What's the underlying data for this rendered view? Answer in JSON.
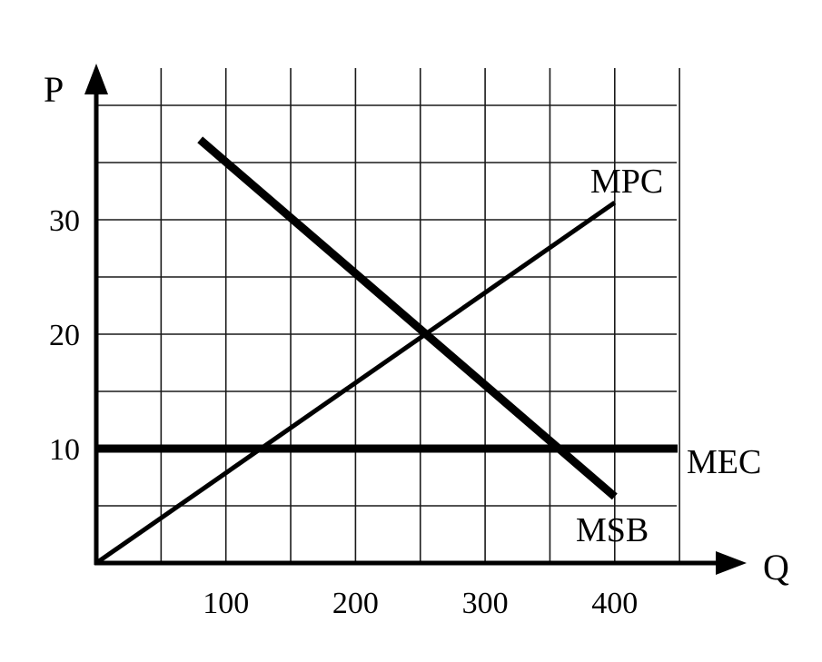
{
  "chart_data": {
    "type": "line",
    "xlabel": "Q",
    "ylabel": "P",
    "xlim": [
      0,
      450
    ],
    "ylim": [
      0,
      40
    ],
    "grid": true,
    "x_ticks": [
      100,
      200,
      300,
      400
    ],
    "y_ticks": [
      10,
      20,
      30
    ],
    "series": [
      {
        "name": "MPC",
        "points": [
          [
            0,
            0
          ],
          [
            400,
            31.5
          ]
        ]
      },
      {
        "name": "MEC",
        "points": [
          [
            0,
            10
          ],
          [
            450,
            10
          ]
        ]
      },
      {
        "name": "MSB",
        "points": [
          [
            80,
            37
          ],
          [
            400,
            5.8
          ]
        ]
      }
    ]
  }
}
